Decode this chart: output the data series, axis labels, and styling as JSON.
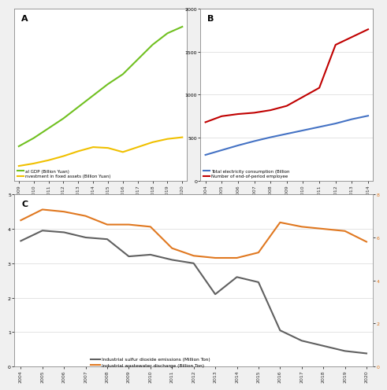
{
  "panel_A": {
    "label": "A",
    "years": [
      2009,
      2010,
      2011,
      2012,
      2013,
      2014,
      2015,
      2016,
      2017,
      2018,
      2019,
      2020
    ],
    "gdp": [
      42,
      52,
      64,
      76,
      90,
      104,
      118,
      130,
      148,
      166,
      180,
      188
    ],
    "investment": [
      18,
      21,
      25,
      30,
      36,
      41,
      40,
      35,
      41,
      47,
      51,
      53
    ],
    "gdp_color": "#70c020",
    "investment_color": "#f0c000",
    "legend_gdp": "al GDP (Billion Yuan)",
    "legend_invest": "nvestment in fixed assets (Billion Yuan)"
  },
  "panel_B": {
    "label": "B",
    "years": [
      2004,
      2005,
      2006,
      2007,
      2008,
      2009,
      2010,
      2011,
      2012,
      2013,
      2014
    ],
    "elec": [
      300,
      355,
      410,
      460,
      505,
      545,
      585,
      625,
      665,
      715,
      755
    ],
    "emp": [
      680,
      750,
      775,
      790,
      820,
      870,
      975,
      1080,
      1580,
      1670,
      1760
    ],
    "elec_color": "#4472c4",
    "emp_color": "#c00000",
    "yticks": [
      0,
      500,
      1000,
      1500,
      2000
    ],
    "ylim": [
      0,
      2000
    ],
    "legend_elec": "Total electricity consumption (Billion",
    "legend_emp": "Number of end-of-period employee"
  },
  "panel_C": {
    "label": "C",
    "years": [
      2004,
      2005,
      2006,
      2007,
      2008,
      2009,
      2010,
      2011,
      2012,
      2013,
      2014,
      2015,
      2016,
      2017,
      2018,
      2019,
      2020
    ],
    "so2": [
      3.65,
      3.95,
      3.9,
      3.75,
      3.7,
      3.2,
      3.25,
      3.1,
      3.0,
      2.1,
      2.6,
      2.45,
      1.05,
      0.75,
      0.6,
      0.45,
      0.38
    ],
    "wastewater": [
      6.8,
      7.3,
      7.2,
      7.0,
      6.6,
      6.6,
      6.5,
      5.5,
      5.15,
      5.05,
      5.05,
      5.3,
      6.7,
      6.5,
      6.4,
      6.3,
      5.8
    ],
    "so2_color": "#606060",
    "ww_color": "#e07820",
    "legend_so2": "Industrial sulfur dioxide emissions (Million Ton)",
    "legend_ww": "Industrial wastewater discharge (Billion Ton)",
    "ylim_left": [
      0.0,
      5.0
    ],
    "ylim_right": [
      0,
      8
    ],
    "yticks_left": [
      0.0,
      1.0,
      2.0,
      3.0,
      4.0,
      5.0
    ],
    "yticks_right": [
      0,
      2,
      4,
      6,
      8
    ]
  },
  "bg_color": "#ffffff",
  "outer_bg": "#f0f0f0"
}
